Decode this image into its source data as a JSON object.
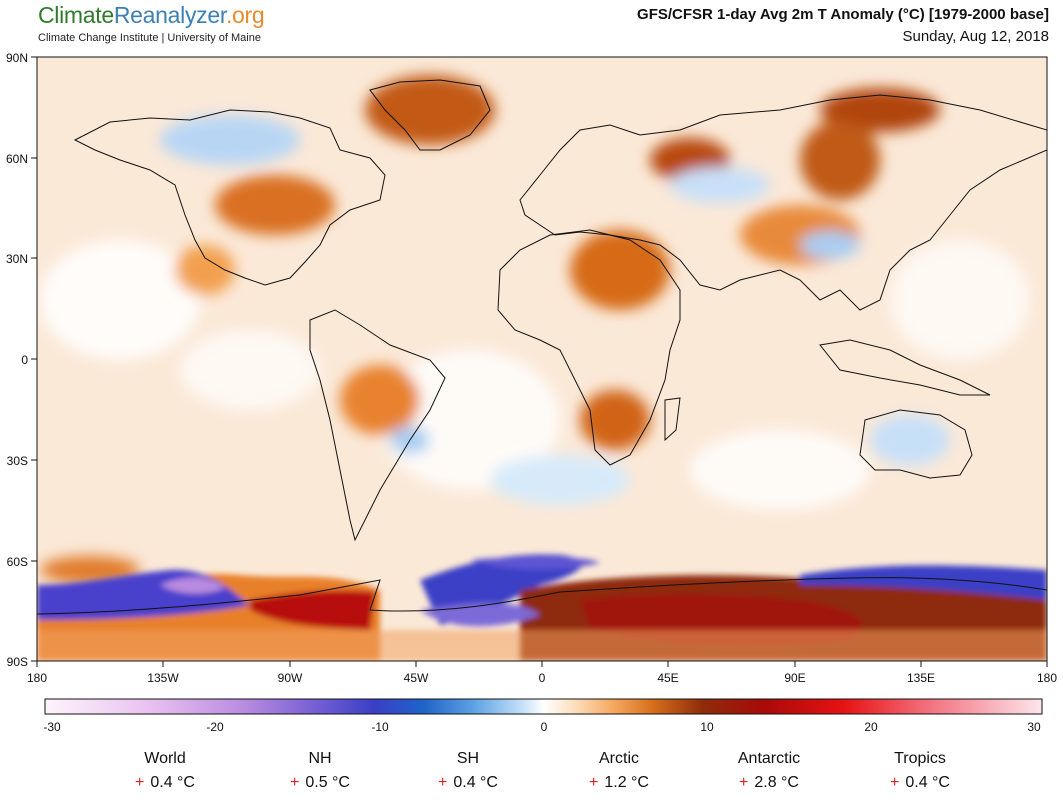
{
  "header": {
    "logo_part1": "Climate",
    "logo_part2": "Reanalyzer",
    "logo_part3": ".org",
    "subtitle": "Climate Change Institute | University of Maine",
    "title": "GFS/CFSR 1-day Avg 2m T Anomaly (°C) [1979-2000 base]",
    "date": "Sunday, Aug 12, 2018"
  },
  "map": {
    "lat_labels": [
      "90N",
      "60N",
      "30N",
      "0",
      "30S",
      "60S",
      "90S"
    ],
    "lon_labels": [
      "180",
      "135W",
      "90W",
      "45W",
      "0",
      "45E",
      "90E",
      "135E",
      "180"
    ]
  },
  "colorbar": {
    "tick_labels": [
      "-30",
      "-20",
      "-10",
      "0",
      "10",
      "20",
      "30"
    ],
    "colors": [
      "#fdf4fb",
      "#e6b3ee",
      "#a56ad9",
      "#6a54d0",
      "#3f3fc4",
      "#1f4fc0",
      "#3a84d8",
      "#7db6ee",
      "#c9e3fa",
      "#ffffff",
      "#fde6c8",
      "#f8b878",
      "#e8802a",
      "#c25a12",
      "#8a2a0a",
      "#b80b0b",
      "#e81010",
      "#f04a5c",
      "#f8aab8",
      "#fde6ec"
    ]
  },
  "stats": [
    {
      "name": "World",
      "sign": "+",
      "value": "0.4 °C"
    },
    {
      "name": "NH",
      "sign": "+",
      "value": "0.5 °C"
    },
    {
      "name": "SH",
      "sign": "+",
      "value": "0.4 °C"
    },
    {
      "name": "Arctic",
      "sign": "+",
      "value": "1.2 °C"
    },
    {
      "name": "Antarctic",
      "sign": "+",
      "value": "2.8 °C"
    },
    {
      "name": "Tropics",
      "sign": "+",
      "value": "0.4 °C"
    }
  ]
}
